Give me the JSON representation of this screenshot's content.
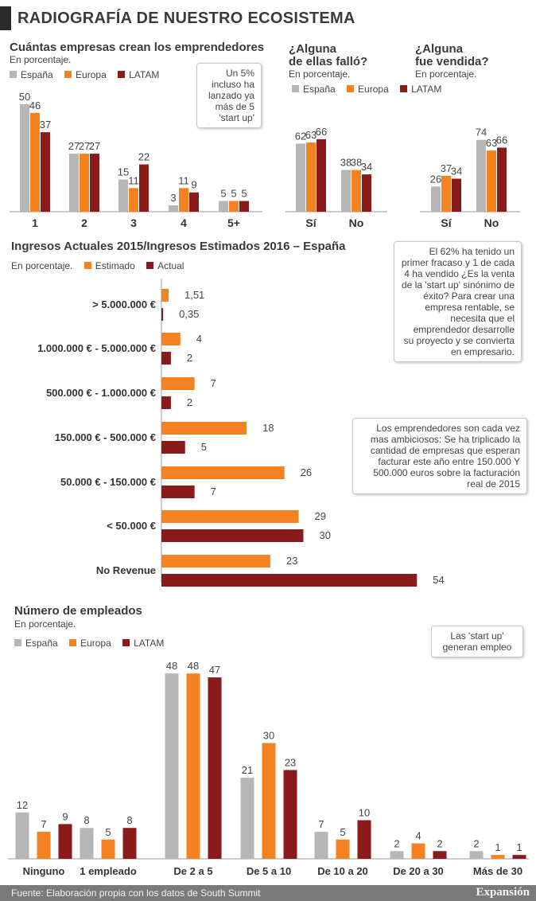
{
  "title": "RADIOGRAFÍA DE NUESTRO ECOSISTEMA",
  "colors": {
    "espana": "#b6b6b6",
    "europa": "#f58220",
    "latam": "#8b1a1a",
    "estimado": "#f58220",
    "actual": "#8b1a1a"
  },
  "panel_companies": {
    "title": "Cuántas empresas crean los emprendedores",
    "subtitle": "En porcentaje.",
    "legend": [
      "España",
      "Europa",
      "LATAM"
    ],
    "callout": "Un 5% incluso ha lanzado ya más de 5 'start up'"
  },
  "panel_failed": {
    "title_line1": "¿Alguna",
    "title_line2": "de ellas falló?",
    "subtitle": "En porcentaje.",
    "legend": [
      "España",
      "Europa",
      "LATAM"
    ]
  },
  "panel_sold": {
    "title_line1": "¿Alguna",
    "title_line2": "fue vendida?",
    "subtitle": "En porcentaje.",
    "callout": "El 62% ha tenido un primer fracaso y 1 de cada 4 ha vendido ¿Es la venta de la 'start up' sinónimo de éxito? Para crear una empresa rentable, se necesita que el emprendedor desarrolle su proyecto y se convierta en empresario."
  },
  "panel_revenue": {
    "title": "Ingresos Actuales 2015/Ingresos Estimados 2016 – España",
    "subtitle": "En porcentaje.",
    "legend": [
      "Estimado",
      "Actual"
    ],
    "callout": "Los emprendedores son cada vez mas ambiciosos: Se ha triplicado la cantidad de empresas que esperan facturar este año entre 150.000 Y 500.000 euros sobre la facturación real de 2015"
  },
  "panel_employees": {
    "title": "Número de empleados",
    "subtitle": "En porcentaje.",
    "legend": [
      "España",
      "Europa",
      "LATAM"
    ],
    "callout": "Las 'start up' generan empleo"
  },
  "footer": {
    "source": "Fuente: Elaboración propia con los datos de South Summit",
    "brand": "Expansión"
  },
  "chart_data": [
    {
      "type": "bar",
      "title": "Cuántas empresas crean los emprendedores",
      "categories": [
        "1",
        "2",
        "3",
        "4",
        "5+"
      ],
      "series": [
        {
          "name": "España",
          "values": [
            50,
            27,
            15,
            3,
            5
          ]
        },
        {
          "name": "Europa",
          "values": [
            46,
            27,
            11,
            11,
            5
          ]
        },
        {
          "name": "LATAM",
          "values": [
            37,
            27,
            22,
            9,
            5
          ]
        }
      ]
    },
    {
      "type": "bar",
      "title": "¿Alguna de ellas falló?",
      "categories": [
        "Sí",
        "No"
      ],
      "series": [
        {
          "name": "España",
          "values": [
            62,
            38
          ]
        },
        {
          "name": "Europa",
          "values": [
            63,
            38
          ]
        },
        {
          "name": "LATAM",
          "values": [
            66,
            34
          ]
        }
      ]
    },
    {
      "type": "bar",
      "title": "¿Alguna fue vendida?",
      "categories": [
        "Sí",
        "No"
      ],
      "series": [
        {
          "name": "España",
          "values": [
            26,
            74
          ]
        },
        {
          "name": "Europa",
          "values": [
            37,
            63
          ]
        },
        {
          "name": "LATAM",
          "values": [
            34,
            66
          ]
        }
      ]
    },
    {
      "type": "bar",
      "orientation": "horizontal",
      "title": "Ingresos Actuales 2015/Ingresos Estimados 2016 – España",
      "categories": [
        "> 5.000.000 €",
        "1.000.000 € - 5.000.000 €",
        "500.000 € - 1.000.000 €",
        "150.000 € - 500.000 €",
        "50.000 € - 150.000 €",
        "< 50.000 €",
        "No Revenue"
      ],
      "series": [
        {
          "name": "Estimado",
          "values": [
            1.51,
            4,
            7,
            18,
            26,
            29,
            23
          ],
          "labels": [
            "1,51",
            "4",
            "7",
            "18",
            "26",
            "29",
            "23"
          ]
        },
        {
          "name": "Actual",
          "values": [
            0.35,
            2,
            2,
            5,
            7,
            30,
            54
          ],
          "labels": [
            "0,35",
            "2",
            "2",
            "5",
            "7",
            "30",
            "54"
          ]
        }
      ]
    },
    {
      "type": "bar",
      "title": "Número de empleados",
      "categories": [
        "Ninguno",
        "1 empleado",
        "De 2 a 5",
        "De 5 a 10",
        "De 10 a 20",
        "De 20 a 30",
        "Más de 30"
      ],
      "series": [
        {
          "name": "España",
          "values": [
            12,
            8,
            48,
            21,
            7,
            2,
            2
          ]
        },
        {
          "name": "Europa",
          "values": [
            7,
            5,
            48,
            30,
            5,
            4,
            1
          ]
        },
        {
          "name": "LATAM",
          "values": [
            9,
            8,
            47,
            23,
            10,
            2,
            1
          ]
        }
      ]
    }
  ]
}
